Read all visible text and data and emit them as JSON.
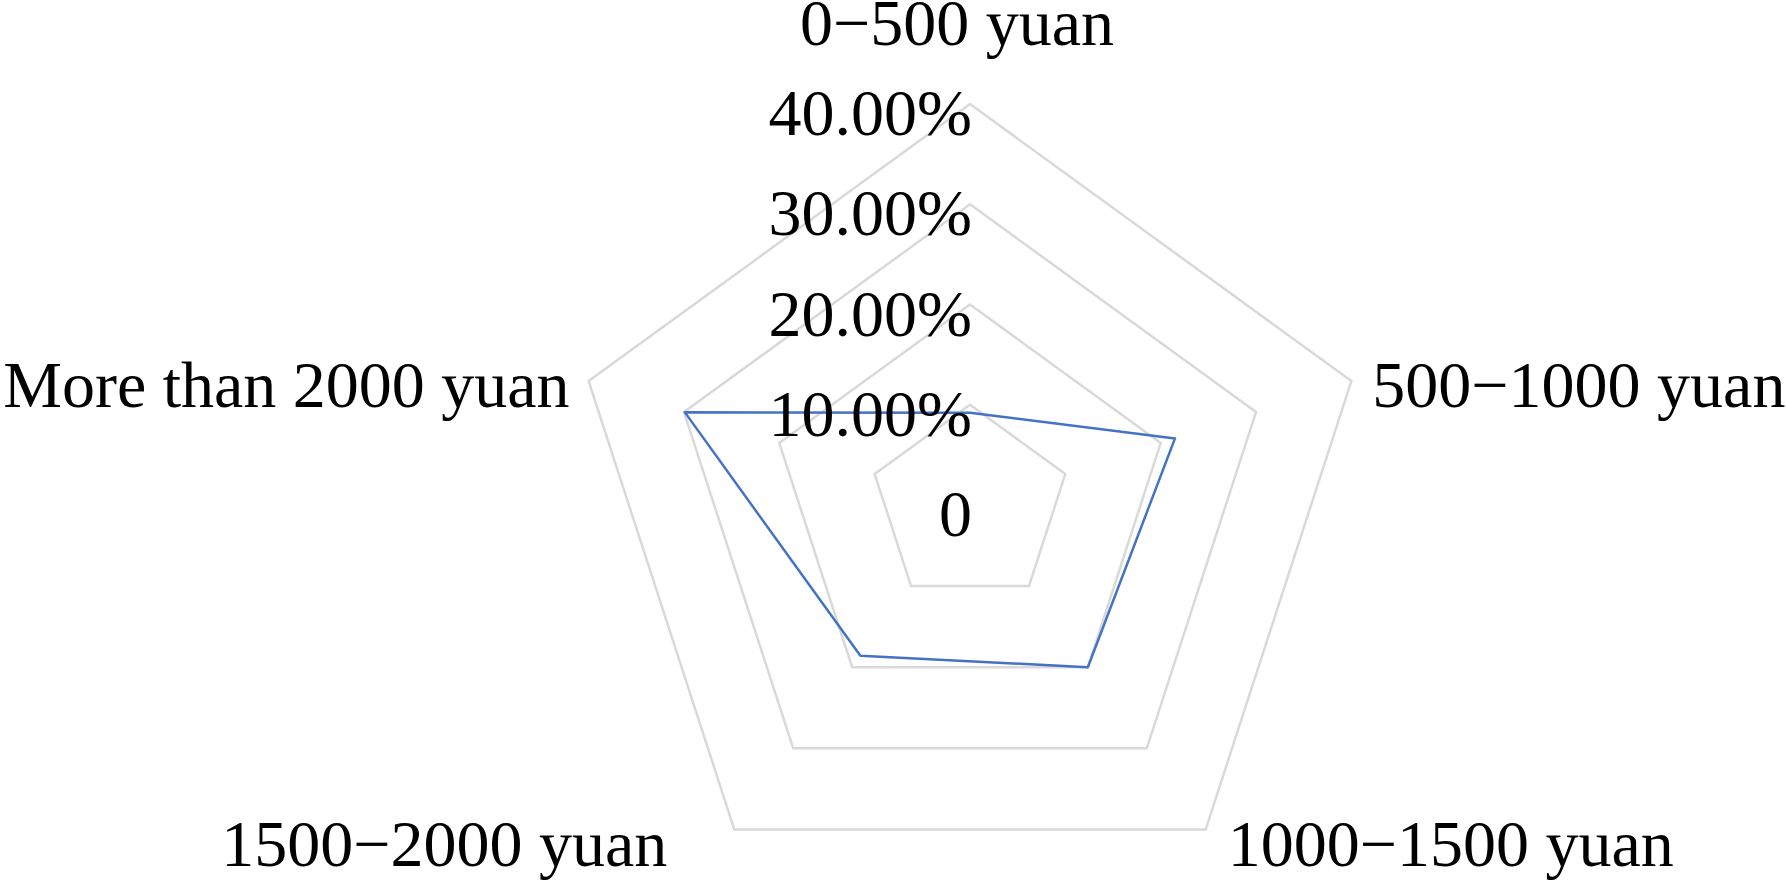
{
  "chart_data": {
    "type": "radar",
    "categories": [
      "0−500 yuan",
      "500−1000 yuan",
      "1000−1500 yuan",
      "1500−2000 yuan",
      "More than 2000 yuan"
    ],
    "series": [
      {
        "color": "#4472c4",
        "values": [
          9.2,
          21.5,
          20.0,
          18.6,
          29.9
        ]
      }
    ],
    "ylim": [
      0,
      40
    ],
    "yticks": [
      0,
      {
        "value": 10,
        "label": "10.00%"
      },
      {
        "value": 20,
        "label": "20.00%"
      },
      {
        "value": 30,
        "label": "30.00%"
      },
      {
        "value": 40,
        "label": "40.00%"
      }
    ],
    "grid": true,
    "marker": "none"
  }
}
